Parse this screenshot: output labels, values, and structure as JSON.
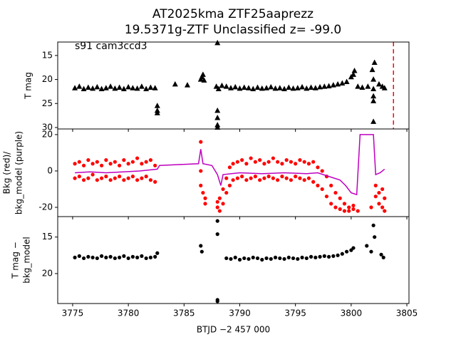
{
  "chart_data": [
    {
      "type": "scatter",
      "title": [
        "AT2025kma  ZTF25aaprezz",
        "19.5371g-ZTF Unclassified z= -99.0"
      ],
      "annotation": "s91 cam3ccd3",
      "ylabel": [
        "T mag"
      ],
      "xlim": [
        3773.66,
        3805.19
      ],
      "xticks": [
        3775,
        3780,
        3785,
        3790,
        3795,
        3800,
        3805
      ],
      "show_xtick_labels": false,
      "ylim": [
        12.2,
        30.3
      ],
      "y_inverted": true,
      "yticks": [
        15,
        20,
        25,
        30
      ],
      "vline": {
        "x": 3803.8,
        "color": "red"
      },
      "series": [
        {
          "type": "scatter",
          "marker": "triangle",
          "color": "black",
          "x": [
            3775.2,
            3775.6,
            3776.0,
            3776.4,
            3776.8,
            3777.2,
            3777.6,
            3778.0,
            3778.4,
            3778.8,
            3779.2,
            3779.6,
            3780.0,
            3780.4,
            3780.8,
            3781.2,
            3781.6,
            3782.0,
            3782.4,
            3782.6,
            3782.6,
            3782.6,
            3784.2,
            3785.3,
            3786.5,
            3786.6,
            3786.7,
            3786.8,
            3787.9,
            3788.0,
            3788.0,
            3788.0,
            3788.0,
            3788.0,
            3788.1,
            3788.4,
            3788.8,
            3789.2,
            3789.6,
            3790.0,
            3790.4,
            3790.8,
            3791.2,
            3791.6,
            3792.0,
            3792.4,
            3792.8,
            3793.2,
            3793.6,
            3794.0,
            3794.4,
            3794.8,
            3795.2,
            3795.6,
            3796.0,
            3796.4,
            3796.8,
            3797.2,
            3797.6,
            3798.0,
            3798.4,
            3798.8,
            3799.2,
            3799.6,
            3800.0,
            3800.2,
            3800.3,
            3800.6,
            3801.0,
            3801.5,
            3801.9,
            3802.0,
            3802.0,
            3802.0,
            3802.0,
            3802.1,
            3802.0,
            3802.5,
            3802.8,
            3803.0
          ],
          "values": [
            21.8,
            21.5,
            22.0,
            21.7,
            21.9,
            21.6,
            22.0,
            21.8,
            21.5,
            21.9,
            21.7,
            22.0,
            21.6,
            21.8,
            21.9,
            21.5,
            22.0,
            21.7,
            21.8,
            25.5,
            26.5,
            27.0,
            21.0,
            21.2,
            20.0,
            19.5,
            19.0,
            20.2,
            21.5,
            12.4,
            26.5,
            28.0,
            29.5,
            30.0,
            22.0,
            21.3,
            21.5,
            21.8,
            21.6,
            21.9,
            21.7,
            21.8,
            22.0,
            21.7,
            21.9,
            21.8,
            21.6,
            21.9,
            21.8,
            22.0,
            21.7,
            21.9,
            21.8,
            21.6,
            21.9,
            21.7,
            21.8,
            21.6,
            21.5,
            21.4,
            21.2,
            21.0,
            20.8,
            20.5,
            19.5,
            19.0,
            18.2,
            21.5,
            21.7,
            21.5,
            18.0,
            20.0,
            22.0,
            23.5,
            24.5,
            16.5,
            28.8,
            21.0,
            21.5,
            21.8
          ]
        }
      ]
    },
    {
      "type": "scatter",
      "ylabel": [
        "Bkg (red)/",
        "bkg_model (purple)"
      ],
      "xlim": [
        3773.66,
        3805.19
      ],
      "xticks": [
        3775,
        3780,
        3785,
        3790,
        3795,
        3800,
        3805
      ],
      "show_xtick_labels": false,
      "ylim": [
        -25.1,
        23.1
      ],
      "y_inverted": false,
      "yticks": [
        -20,
        0,
        20
      ],
      "series": [
        {
          "type": "scatter",
          "marker": "circle",
          "color": "red",
          "x": [
            3775.2,
            3775.2,
            3775.6,
            3775.6,
            3776.0,
            3776.0,
            3776.4,
            3776.4,
            3776.8,
            3776.8,
            3777.2,
            3777.2,
            3777.6,
            3777.6,
            3778.0,
            3778.0,
            3778.4,
            3778.4,
            3778.8,
            3778.8,
            3779.2,
            3779.2,
            3779.6,
            3779.6,
            3780.0,
            3780.0,
            3780.4,
            3780.4,
            3780.8,
            3780.8,
            3781.2,
            3781.2,
            3781.6,
            3781.6,
            3782.0,
            3782.0,
            3782.4,
            3782.4,
            3786.5,
            3786.5,
            3786.5,
            3786.7,
            3786.9,
            3786.9,
            3788.0,
            3788.0,
            3788.2,
            3788.2,
            3788.5,
            3788.5,
            3788.8,
            3788.8,
            3789.1,
            3789.1,
            3789.4,
            3789.4,
            3789.8,
            3789.8,
            3790.2,
            3790.2,
            3790.6,
            3790.6,
            3791.0,
            3791.0,
            3791.4,
            3791.4,
            3791.8,
            3791.8,
            3792.2,
            3792.2,
            3792.6,
            3792.6,
            3793.0,
            3793.0,
            3793.4,
            3793.4,
            3793.8,
            3793.8,
            3794.2,
            3794.2,
            3794.6,
            3794.6,
            3795.0,
            3795.0,
            3795.4,
            3795.4,
            3795.8,
            3795.8,
            3796.2,
            3796.2,
            3796.6,
            3796.6,
            3797.0,
            3797.0,
            3797.4,
            3797.4,
            3797.8,
            3797.8,
            3798.2,
            3798.2,
            3798.6,
            3798.6,
            3799.0,
            3799.0,
            3799.4,
            3799.4,
            3799.8,
            3799.8,
            3800.2,
            3800.2,
            3800.6,
            3801.8,
            3802.2,
            3802.2,
            3802.5,
            3802.5,
            3802.8,
            3802.8,
            3803.0,
            3803.0
          ],
          "values": [
            4,
            -4,
            5,
            -3,
            3,
            -5,
            6,
            -4,
            4,
            -2,
            5,
            -5,
            3,
            -4,
            6,
            -3,
            4,
            -5,
            5,
            -4,
            3,
            -3,
            6,
            -5,
            4,
            -4,
            5,
            -3,
            7,
            -5,
            4,
            -4,
            5,
            -3,
            6,
            -5,
            3,
            -6,
            16,
            0,
            -8,
            -12,
            -15,
            -18,
            -20,
            -17,
            -22,
            -15,
            -18,
            -10,
            -12,
            -4,
            -8,
            2,
            -5,
            4,
            5,
            -4,
            6,
            -3,
            4,
            -5,
            7,
            -4,
            5,
            -3,
            6,
            -5,
            4,
            -4,
            5,
            -3,
            7,
            -4,
            5,
            -5,
            4,
            -3,
            6,
            -4,
            5,
            -5,
            4,
            -3,
            6,
            -4,
            5,
            -5,
            4,
            -4,
            5,
            -6,
            2,
            -8,
            0,
            -10,
            -3,
            -14,
            -8,
            -18,
            -12,
            -20,
            -15,
            -21,
            -18,
            -22,
            -20,
            -22,
            -21,
            -19,
            -22,
            -20,
            -8,
            -14,
            -12,
            -18,
            -10,
            -20,
            -15,
            -22
          ]
        },
        {
          "type": "line",
          "color": "#bf00bf",
          "x": [
            3775.2,
            3776.5,
            3778.0,
            3779.5,
            3781.0,
            3782.6,
            3782.8,
            3784.5,
            3786.3,
            3786.5,
            3786.7,
            3787.5,
            3788.0,
            3788.3,
            3788.5,
            3790.0,
            3792.0,
            3794.0,
            3796.0,
            3797.0,
            3798.0,
            3799.0,
            3799.5,
            3800.0,
            3800.5,
            3800.8,
            3801.5,
            3802.0,
            3802.2,
            3802.6,
            3803.0
          ],
          "values": [
            -1,
            -0.5,
            -1,
            -0.5,
            0,
            1,
            3,
            3.5,
            4,
            12,
            4,
            3,
            -2,
            -8,
            -2,
            -1,
            -1.5,
            -1,
            -1.5,
            -1,
            -3,
            -5,
            -8,
            -12,
            -13,
            20,
            20,
            20,
            -2,
            -1,
            1
          ]
        }
      ]
    },
    {
      "type": "scatter",
      "ylabel": [
        "T mag −",
        "bkg_model"
      ],
      "xlabel": "BTJD −2 457 000",
      "xlim": [
        3773.66,
        3805.19
      ],
      "xticks": [
        3775,
        3780,
        3785,
        3790,
        3795,
        3800,
        3805
      ],
      "show_xtick_labels": true,
      "ylim": [
        12.2,
        24.1
      ],
      "y_inverted": true,
      "yticks": [
        15,
        20
      ],
      "series": [
        {
          "type": "scatter",
          "marker": "circle",
          "color": "black",
          "x": [
            3775.2,
            3775.6,
            3776.0,
            3776.4,
            3776.8,
            3777.2,
            3777.6,
            3778.0,
            3778.4,
            3778.8,
            3779.2,
            3779.6,
            3780.0,
            3780.4,
            3780.8,
            3781.2,
            3781.6,
            3782.0,
            3782.4,
            3782.6,
            3786.5,
            3786.6,
            3788.0,
            3788.0,
            3788.0,
            3788.0,
            3788.8,
            3789.2,
            3789.6,
            3790.0,
            3790.4,
            3790.8,
            3791.2,
            3791.6,
            3792.0,
            3792.4,
            3792.8,
            3793.2,
            3793.6,
            3794.0,
            3794.4,
            3794.8,
            3795.2,
            3795.6,
            3796.0,
            3796.4,
            3796.8,
            3797.2,
            3797.6,
            3798.0,
            3798.4,
            3798.8,
            3799.2,
            3799.6,
            3800.0,
            3800.2,
            3801.4,
            3801.8,
            3802.0,
            3802.1,
            3802.7,
            3802.9
          ],
          "values": [
            17.8,
            17.6,
            17.9,
            17.7,
            17.8,
            17.9,
            17.6,
            17.8,
            17.7,
            17.9,
            17.8,
            17.6,
            17.9,
            17.7,
            17.8,
            17.6,
            17.9,
            17.8,
            17.7,
            17.2,
            16.2,
            17.0,
            12.8,
            14.6,
            23.6,
            23.8,
            17.9,
            18.0,
            17.8,
            18.1,
            17.9,
            18.0,
            17.8,
            17.9,
            18.1,
            17.9,
            18.0,
            17.8,
            17.9,
            18.0,
            17.8,
            17.9,
            18.0,
            17.8,
            17.9,
            17.7,
            17.8,
            17.7,
            17.6,
            17.7,
            17.6,
            17.5,
            17.3,
            17.0,
            16.8,
            16.5,
            16.2,
            17.0,
            13.4,
            15.0,
            17.4,
            17.8
          ]
        }
      ]
    }
  ]
}
